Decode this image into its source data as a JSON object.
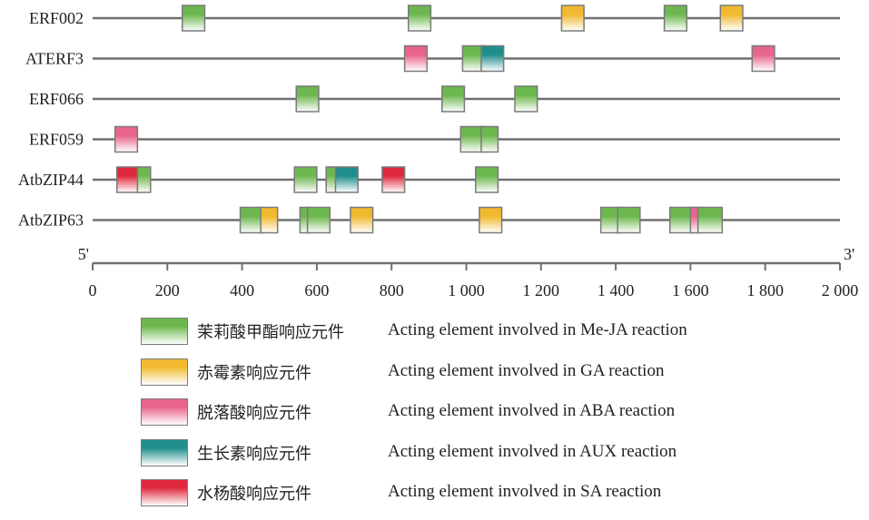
{
  "chart_data": {
    "type": "gene-structure",
    "x_axis": {
      "min": 0,
      "max": 2000,
      "ticks": [
        0,
        200,
        400,
        600,
        800,
        1000,
        1200,
        1400,
        1600,
        1800,
        2000
      ],
      "tick_labels": [
        "0",
        "200",
        "400",
        "600",
        "800",
        "1 000",
        "1 200",
        "1 400",
        "1 600",
        "1 800",
        "2 000"
      ],
      "end_left": "5'",
      "end_right": "3'"
    },
    "element_types": [
      {
        "key": "meja",
        "label_cn": "茉莉酸甲酯响应元件",
        "label_en": "Acting element involved in Me-JA reaction",
        "color": "#6db84e"
      },
      {
        "key": "ga",
        "label_cn": "赤霉素响应元件",
        "label_en": "Acting element involved in GA reaction",
        "color": "#f0b92f"
      },
      {
        "key": "aba",
        "label_cn": "脱落酸响应元件",
        "label_en": "Acting element involved in ABA reaction",
        "color": "#e8648a"
      },
      {
        "key": "aux",
        "label_cn": "生长素响应元件",
        "label_en": "Acting element involved in AUX reaction",
        "color": "#1f8e8c"
      },
      {
        "key": "sa",
        "label_cn": "水杨酸响应元件",
        "label_en": "Acting element involved in SA reaction",
        "color": "#e0283c"
      }
    ],
    "genes": [
      {
        "name": "ERF002",
        "elements": [
          {
            "start": 240,
            "end": 300,
            "type": "meja"
          },
          {
            "start": 845,
            "end": 905,
            "type": "meja"
          },
          {
            "start": 1255,
            "end": 1315,
            "type": "ga"
          },
          {
            "start": 1530,
            "end": 1590,
            "type": "meja"
          },
          {
            "start": 1680,
            "end": 1740,
            "type": "ga"
          }
        ]
      },
      {
        "name": "ATERF3",
        "elements": [
          {
            "start": 835,
            "end": 895,
            "type": "aba"
          },
          {
            "start": 990,
            "end": 1045,
            "type": "meja"
          },
          {
            "start": 1040,
            "end": 1100,
            "type": "aux"
          },
          {
            "start": 1765,
            "end": 1825,
            "type": "aba"
          }
        ]
      },
      {
        "name": "ERF066",
        "elements": [
          {
            "start": 545,
            "end": 605,
            "type": "meja"
          },
          {
            "start": 935,
            "end": 995,
            "type": "meja"
          },
          {
            "start": 1130,
            "end": 1190,
            "type": "meja"
          }
        ]
      },
      {
        "name": "ERF059",
        "elements": [
          {
            "start": 60,
            "end": 120,
            "type": "aba"
          },
          {
            "start": 985,
            "end": 1045,
            "type": "meja"
          },
          {
            "start": 1040,
            "end": 1085,
            "type": "meja"
          }
        ]
      },
      {
        "name": "AtbZIP44",
        "elements": [
          {
            "start": 65,
            "end": 125,
            "type": "sa"
          },
          {
            "start": 120,
            "end": 155,
            "type": "meja"
          },
          {
            "start": 540,
            "end": 600,
            "type": "meja"
          },
          {
            "start": 625,
            "end": 655,
            "type": "meja"
          },
          {
            "start": 650,
            "end": 710,
            "type": "aux"
          },
          {
            "start": 775,
            "end": 835,
            "type": "sa"
          },
          {
            "start": 1025,
            "end": 1085,
            "type": "meja"
          }
        ]
      },
      {
        "name": "AtbZIP63",
        "elements": [
          {
            "start": 395,
            "end": 455,
            "type": "meja"
          },
          {
            "start": 450,
            "end": 495,
            "type": "ga"
          },
          {
            "start": 555,
            "end": 580,
            "type": "meja"
          },
          {
            "start": 575,
            "end": 635,
            "type": "meja"
          },
          {
            "start": 690,
            "end": 750,
            "type": "ga"
          },
          {
            "start": 1035,
            "end": 1095,
            "type": "ga"
          },
          {
            "start": 1360,
            "end": 1410,
            "type": "meja"
          },
          {
            "start": 1405,
            "end": 1465,
            "type": "meja"
          },
          {
            "start": 1545,
            "end": 1605,
            "type": "meja"
          },
          {
            "start": 1600,
            "end": 1625,
            "type": "aba"
          },
          {
            "start": 1620,
            "end": 1685,
            "type": "meja"
          }
        ]
      }
    ]
  }
}
